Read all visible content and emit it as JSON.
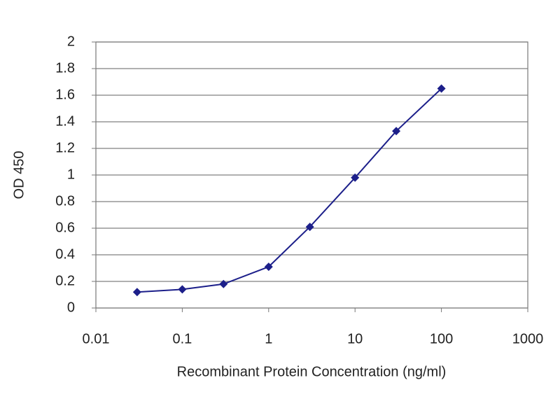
{
  "chart_data": {
    "type": "line",
    "xlabel": "Recombinant Protein Concentration (ng/ml)",
    "ylabel": "OD 450",
    "x": [
      0.03,
      0.1,
      0.3,
      1,
      3,
      10,
      30,
      100
    ],
    "series": [
      {
        "name": "OD 450",
        "color": "#1c1f8a",
        "values": [
          0.12,
          0.14,
          0.18,
          0.31,
          0.61,
          0.98,
          1.33,
          1.65
        ]
      }
    ],
    "xlim": [
      0.01,
      1000
    ],
    "xticks": [
      0.01,
      0.1,
      1,
      10,
      100,
      1000
    ],
    "xscale": "log",
    "ylim": [
      0,
      2
    ],
    "yticks": [
      0,
      0.2,
      0.4,
      0.6,
      0.8,
      1,
      1.2,
      1.4,
      1.6,
      1.8,
      2
    ],
    "grid": true
  }
}
